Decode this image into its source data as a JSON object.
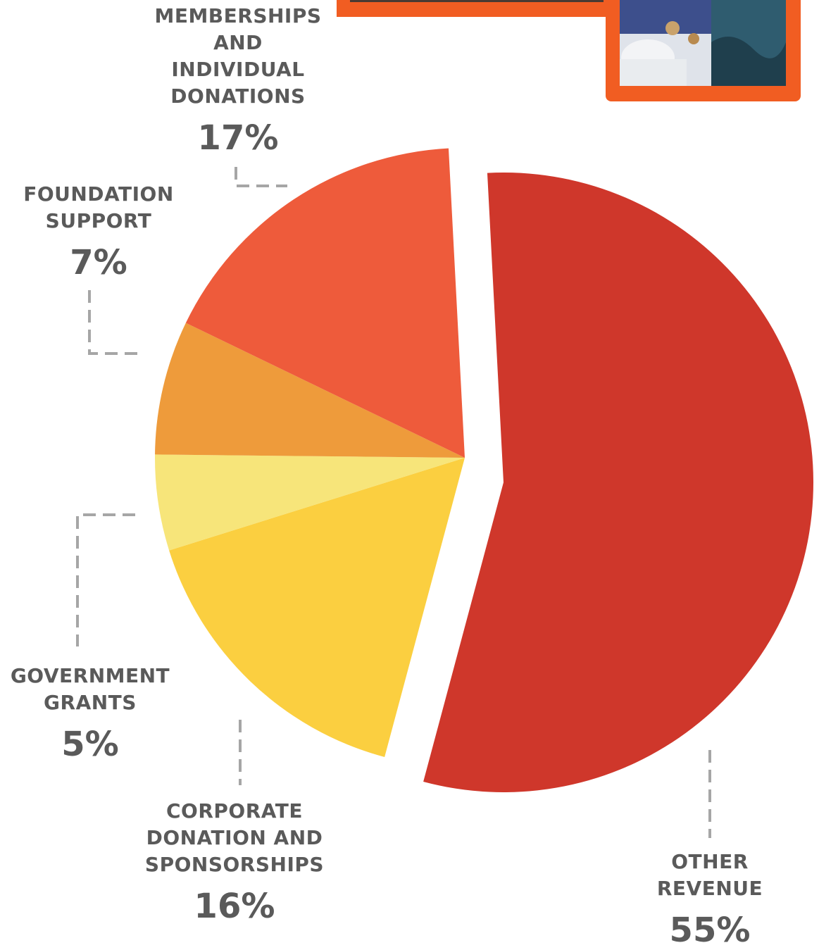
{
  "chart_data": {
    "type": "pie",
    "slices": [
      {
        "label": "OTHER\nREVENUE",
        "value": 55,
        "value_label": "55%",
        "color": "#cf372b",
        "exploded": true
      },
      {
        "label": "CORPORATE\nDONATION AND\nSPONSORSHIPS",
        "value": 16,
        "value_label": "16%",
        "color": "#fbcf40",
        "exploded": false
      },
      {
        "label": "GOVERNMENT\nGRANTS",
        "value": 5,
        "value_label": "5%",
        "color": "#f7e57a",
        "exploded": false
      },
      {
        "label": "FOUNDATION\nSUPPORT",
        "value": 7,
        "value_label": "7%",
        "color": "#ee9b3b",
        "exploded": false
      },
      {
        "label": "MEMBERSHIPS\nAND\nINDIVIDUAL\nDONATIONS",
        "value": 17,
        "value_label": "17%",
        "color": "#ee5b3b",
        "exploded": false
      }
    ],
    "legend": "none",
    "label_style": "callouts with dashed leader lines"
  },
  "colors": {
    "label_text": "#5a5a5a",
    "leader_line": "#a6a6a6",
    "photo_border": "#f15d22"
  }
}
